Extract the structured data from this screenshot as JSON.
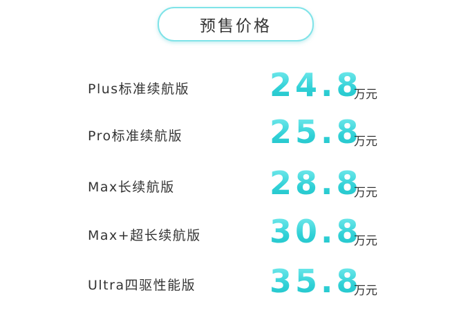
{
  "header": {
    "title": "预售价格"
  },
  "rows": [
    {
      "name": "Plus标准续航版",
      "price": 24.8,
      "unit": "万元"
    },
    {
      "name": "Pro标准续航版",
      "price": 25.8,
      "unit": "万元"
    },
    {
      "name": "Max长续航版",
      "price": 28.8,
      "unit": "万元"
    },
    {
      "name": "Max+超长续航版",
      "price": 30.8,
      "unit": "万元"
    },
    {
      "name": "Ultra四驱性能版",
      "price": 35.8,
      "unit": "万元"
    }
  ]
}
